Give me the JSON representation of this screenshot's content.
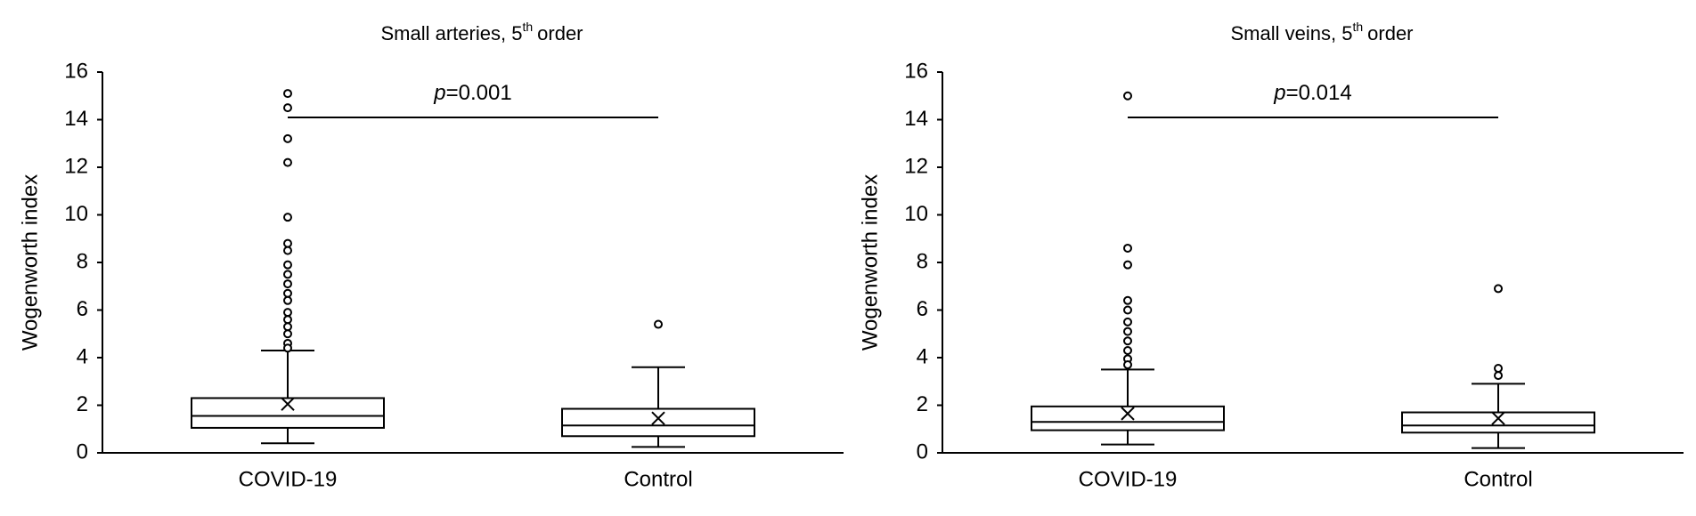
{
  "chart_data": [
    {
      "type": "box",
      "title": "Small arteries, 5",
      "title_superscript": "th",
      "title_suffix": "order",
      "ylabel": "Wogenworth index",
      "annotation_italic": "p",
      "annotation": "=0.001",
      "categories": [
        "COVID-19",
        "Control"
      ],
      "boxes": [
        {
          "min": 0.4,
          "q1": 1.05,
          "median": 1.55,
          "q3": 2.3,
          "max": 4.3,
          "mean": 2.05,
          "outliers": [
            15.1,
            14.5,
            13.2,
            12.2,
            9.9,
            8.8,
            8.5,
            7.9,
            7.5,
            7.1,
            6.7,
            6.4,
            5.9,
            5.6,
            5.3,
            5.0,
            4.6,
            4.4
          ]
        },
        {
          "min": 0.25,
          "q1": 0.7,
          "median": 1.15,
          "q3": 1.85,
          "max": 3.6,
          "mean": 1.45,
          "outliers": [
            5.4
          ]
        }
      ],
      "ylim": [
        0,
        16
      ],
      "yticks": [
        0,
        2,
        4,
        6,
        8,
        10,
        12,
        14,
        16
      ],
      "color": "#000000"
    },
    {
      "type": "box",
      "title": "Small veins, 5",
      "title_superscript": "th",
      "title_suffix": "order",
      "ylabel": "Wogenworth index",
      "annotation_italic": "p",
      "annotation": "=0.014",
      "categories": [
        "COVID-19",
        "Control"
      ],
      "boxes": [
        {
          "min": 0.35,
          "q1": 0.95,
          "median": 1.3,
          "q3": 1.95,
          "max": 3.5,
          "mean": 1.65,
          "outliers": [
            15.0,
            8.6,
            7.9,
            6.4,
            6.0,
            5.5,
            5.1,
            4.7,
            4.3,
            3.95,
            3.7
          ]
        },
        {
          "min": 0.2,
          "q1": 0.85,
          "median": 1.15,
          "q3": 1.7,
          "max": 2.9,
          "mean": 1.45,
          "outliers": [
            6.9,
            3.55,
            3.25
          ]
        }
      ],
      "ylim": [
        0,
        16
      ],
      "yticks": [
        0,
        2,
        4,
        6,
        8,
        10,
        12,
        14,
        16
      ],
      "color": "#000000"
    }
  ]
}
